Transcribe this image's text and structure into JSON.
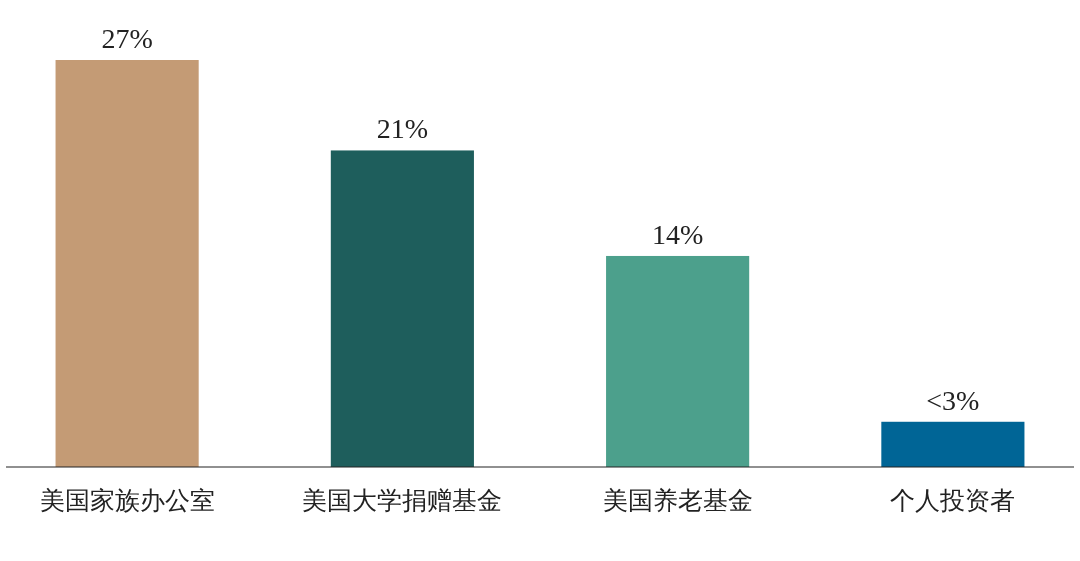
{
  "chart_data": {
    "type": "bar",
    "categories": [
      "美国家族办公室",
      "美国大学捐赠基金",
      "美国养老基金",
      "个人投资者"
    ],
    "values": [
      27,
      21,
      14,
      3
    ],
    "colors": [
      "#c49b75",
      "#1e5e5c",
      "#4ca08c",
      "#006596"
    ],
    "value_labels": [
      "27%",
      "21%",
      "14%",
      "<3%"
    ]
  }
}
